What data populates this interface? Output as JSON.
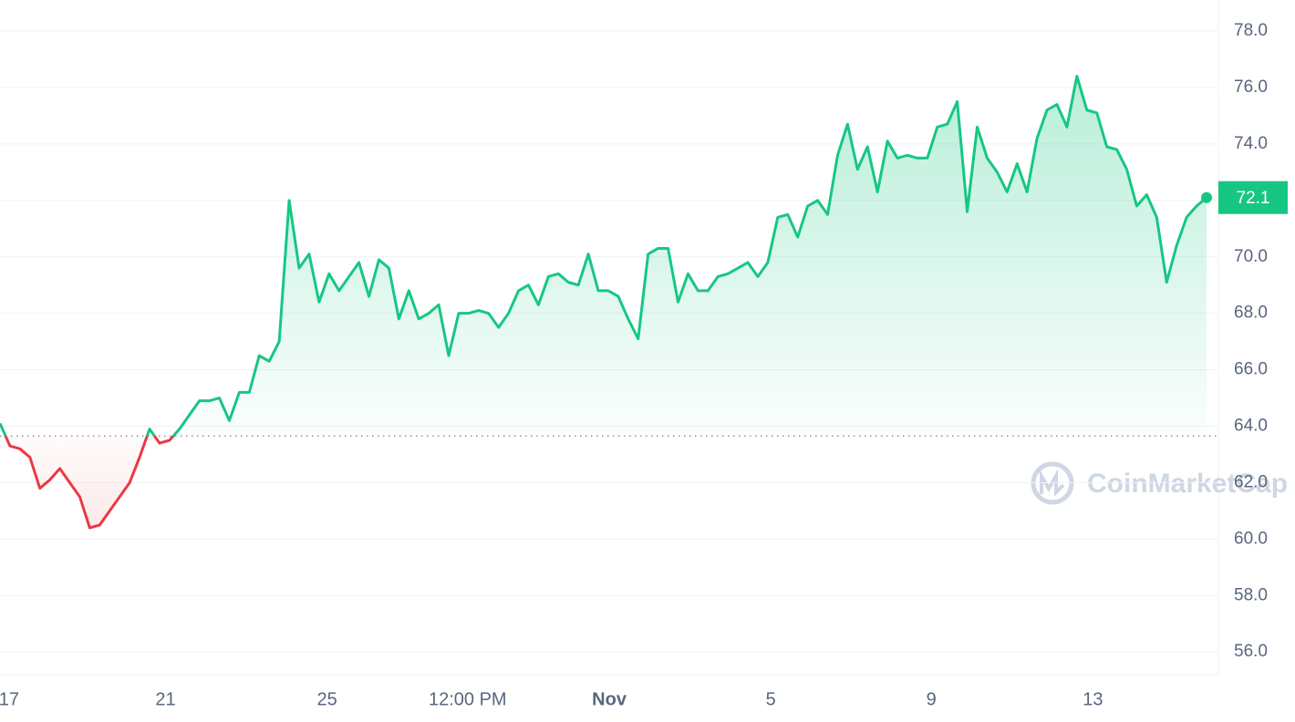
{
  "chart_data": {
    "type": "line",
    "values": [
      64.1,
      63.3,
      63.2,
      62.9,
      61.8,
      62.1,
      62.5,
      62.0,
      61.5,
      60.4,
      60.5,
      61.0,
      61.5,
      62.0,
      62.9,
      63.9,
      63.4,
      63.5,
      63.9,
      64.4,
      64.9,
      64.9,
      65.0,
      64.2,
      65.2,
      65.2,
      66.5,
      66.3,
      67.0,
      72.0,
      69.6,
      70.1,
      68.4,
      69.4,
      68.8,
      69.3,
      69.8,
      68.6,
      69.9,
      69.6,
      67.8,
      68.8,
      67.8,
      68.0,
      68.3,
      66.5,
      68.0,
      68.0,
      68.1,
      68.0,
      67.5,
      68.0,
      68.8,
      69.0,
      68.3,
      69.3,
      69.4,
      69.1,
      69.0,
      70.1,
      68.8,
      68.8,
      68.6,
      67.8,
      67.1,
      70.1,
      70.3,
      70.3,
      68.4,
      69.4,
      68.8,
      68.8,
      69.3,
      69.4,
      69.6,
      69.8,
      69.3,
      69.8,
      71.4,
      71.5,
      70.7,
      71.8,
      72.0,
      71.5,
      73.6,
      74.7,
      73.1,
      73.9,
      72.3,
      74.1,
      73.5,
      73.6,
      73.5,
      73.5,
      74.6,
      74.7,
      75.5,
      71.6,
      74.6,
      73.5,
      73.0,
      72.3,
      73.3,
      72.3,
      74.2,
      75.2,
      75.4,
      74.6,
      76.4,
      75.2,
      75.1,
      73.9,
      73.8,
      73.1,
      71.8,
      72.2,
      71.4,
      69.1,
      70.4,
      71.4,
      71.8,
      72.1
    ],
    "baseline": 63.65,
    "up_color": "#16c784",
    "down_color": "#ea3943",
    "ylim": [
      55.2,
      79.1
    ],
    "yticks": [
      {
        "value": 56,
        "label": "56.0"
      },
      {
        "value": 58,
        "label": "58.0"
      },
      {
        "value": 60,
        "label": "60.0"
      },
      {
        "value": 62,
        "label": "62.0"
      },
      {
        "value": 64,
        "label": "64.0"
      },
      {
        "value": 66,
        "label": "66.0"
      },
      {
        "value": 68,
        "label": "68.0"
      },
      {
        "value": 70,
        "label": "70.0"
      },
      {
        "value": 72,
        "label": "72.0"
      },
      {
        "value": 74,
        "label": "74.0"
      },
      {
        "value": 76,
        "label": "76.0"
      },
      {
        "value": 78,
        "label": "78.0"
      }
    ],
    "xticks": [
      {
        "value": 0.9,
        "label": "17"
      },
      {
        "value": 16.6,
        "label": "21"
      },
      {
        "value": 32.8,
        "label": "25"
      },
      {
        "value": 46.9,
        "label": "12:00 PM"
      },
      {
        "value": 61.1,
        "label": "Nov"
      },
      {
        "value": 77.3,
        "label": "5"
      },
      {
        "value": 93.4,
        "label": "9"
      },
      {
        "value": 109.6,
        "label": "13"
      }
    ],
    "grid": true,
    "watermark": "CoinMarketCap"
  }
}
